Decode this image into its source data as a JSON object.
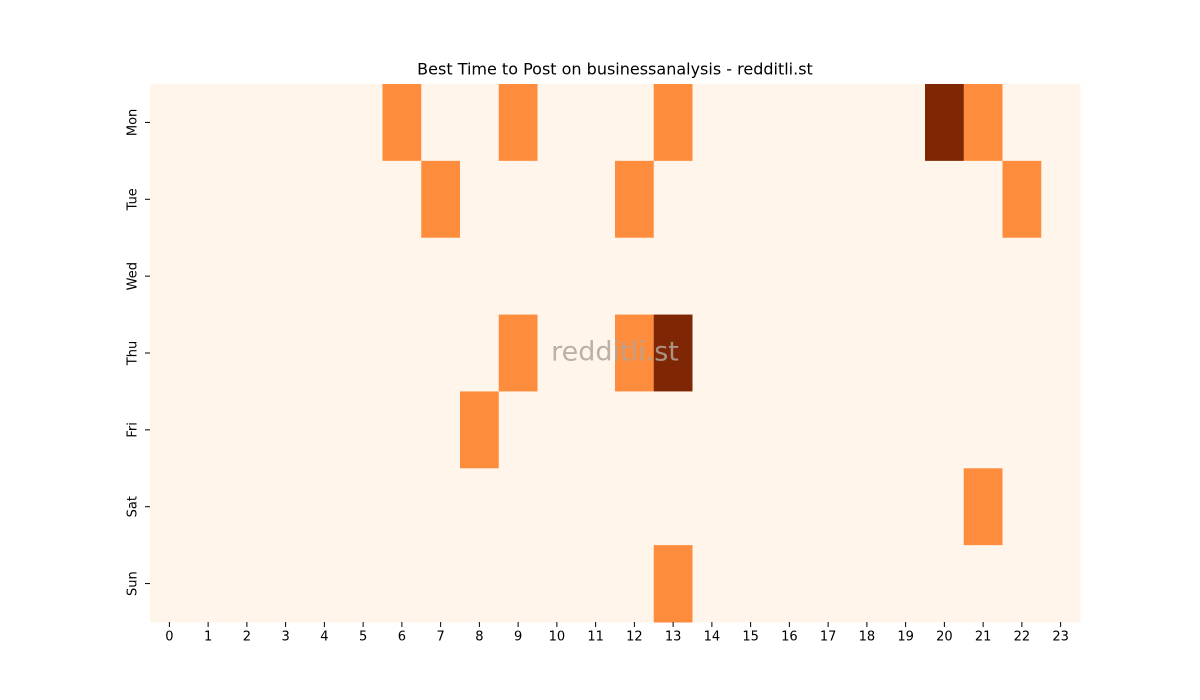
{
  "chart_data": {
    "type": "heatmap",
    "title": "Best Time to Post on businessanalysis - redditli.st",
    "watermark": "redditli.st",
    "x": [
      0,
      1,
      2,
      3,
      4,
      5,
      6,
      7,
      8,
      9,
      10,
      11,
      12,
      13,
      14,
      15,
      16,
      17,
      18,
      19,
      20,
      21,
      22,
      23
    ],
    "y": [
      "Mon",
      "Tue",
      "Wed",
      "Thu",
      "Fri",
      "Sat",
      "Sun"
    ],
    "values": [
      [
        0,
        0,
        0,
        0,
        0,
        0,
        1,
        0,
        0,
        1,
        0,
        0,
        0,
        1,
        0,
        0,
        0,
        0,
        0,
        0,
        2,
        1,
        0,
        0
      ],
      [
        0,
        0,
        0,
        0,
        0,
        0,
        0,
        1,
        0,
        0,
        0,
        0,
        1,
        0,
        0,
        0,
        0,
        0,
        0,
        0,
        0,
        0,
        1,
        0
      ],
      [
        0,
        0,
        0,
        0,
        0,
        0,
        0,
        0,
        0,
        0,
        0,
        0,
        0,
        0,
        0,
        0,
        0,
        0,
        0,
        0,
        0,
        0,
        0,
        0
      ],
      [
        0,
        0,
        0,
        0,
        0,
        0,
        0,
        0,
        0,
        1,
        0,
        0,
        1,
        2,
        0,
        0,
        0,
        0,
        0,
        0,
        0,
        0,
        0,
        0
      ],
      [
        0,
        0,
        0,
        0,
        0,
        0,
        0,
        0,
        1,
        0,
        0,
        0,
        0,
        0,
        0,
        0,
        0,
        0,
        0,
        0,
        0,
        0,
        0,
        0
      ],
      [
        0,
        0,
        0,
        0,
        0,
        0,
        0,
        0,
        0,
        0,
        0,
        0,
        0,
        0,
        0,
        0,
        0,
        0,
        0,
        0,
        0,
        1,
        0,
        0
      ],
      [
        0,
        0,
        0,
        0,
        0,
        0,
        0,
        0,
        0,
        0,
        0,
        0,
        0,
        1,
        0,
        0,
        0,
        0,
        0,
        0,
        0,
        0,
        0,
        0
      ]
    ],
    "colormap": "Oranges",
    "colorscale": [
      "#fff5eb",
      "#fd8d3c",
      "#7f2704"
    ],
    "zlim": [
      0,
      2
    ]
  }
}
